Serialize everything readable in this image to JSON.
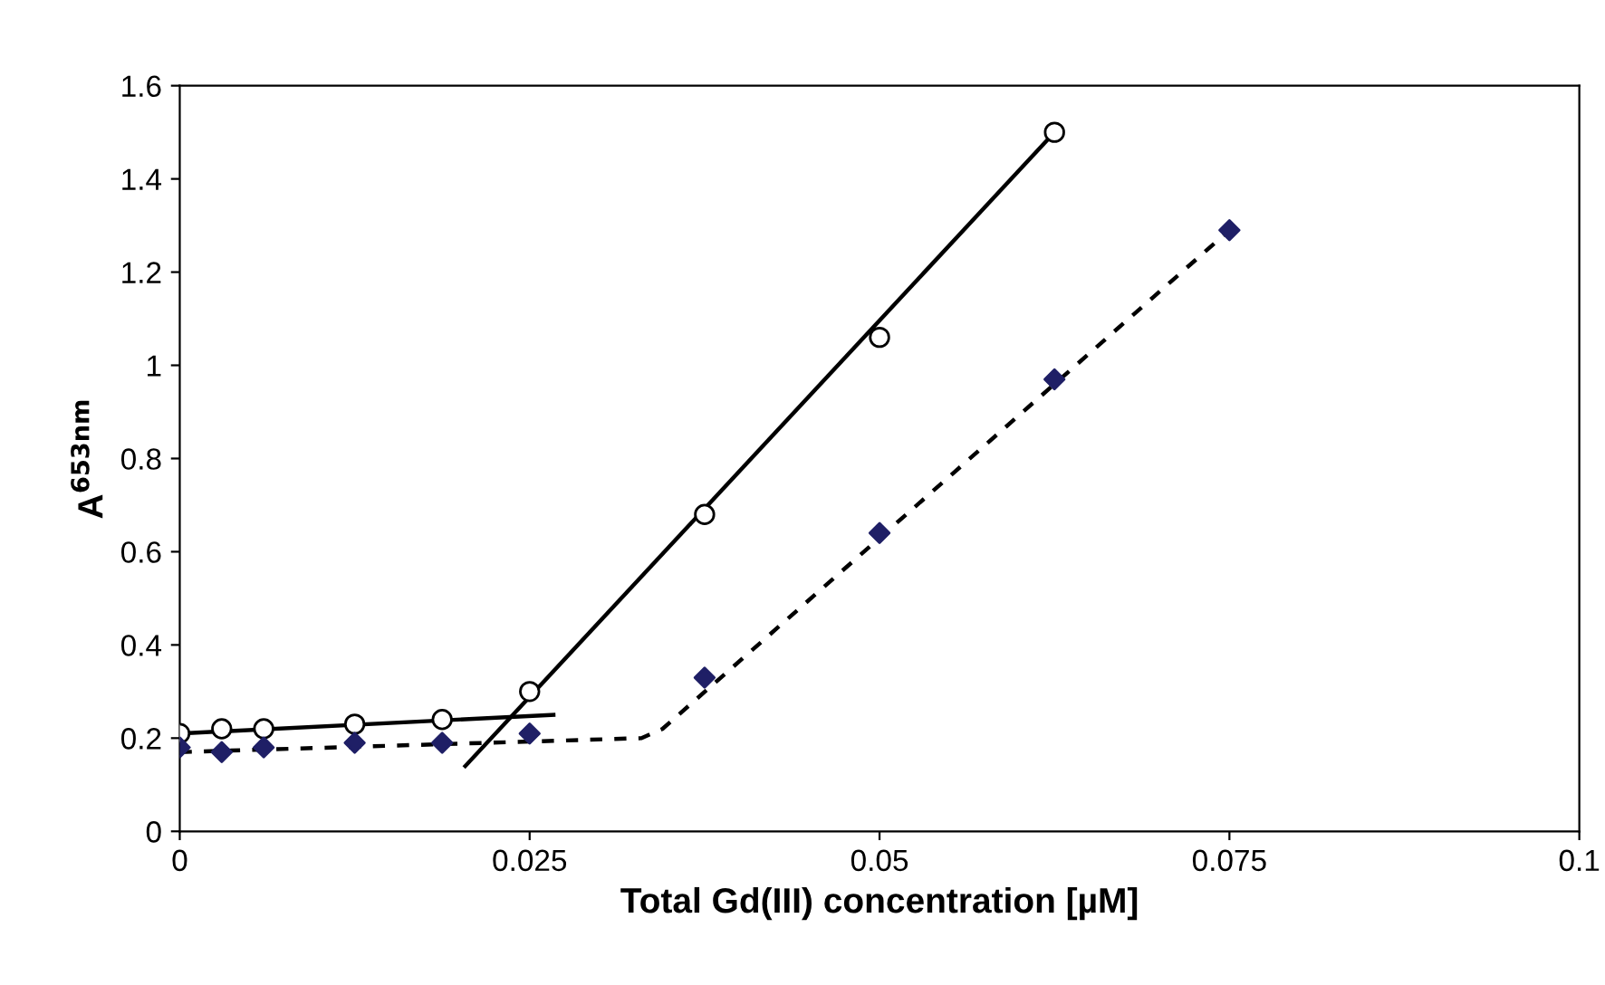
{
  "chart_data": {
    "type": "scatter",
    "xlabel": "Total Gd(III) concentration [µM]",
    "ylabel": "A$^{653nm}$",
    "xlim": [
      0,
      0.1
    ],
    "xticks": [
      0,
      0.025,
      0.05,
      0.075,
      0.1
    ],
    "ylim": [
      0,
      1.6
    ],
    "yticks": [
      0,
      0.2,
      0.4,
      0.6,
      0.8,
      1,
      1.2,
      1.4,
      1.6
    ],
    "grid": false,
    "legend": false,
    "series": [
      {
        "type": "line",
        "color": "#000000",
        "line_style": "solid",
        "marker": "none",
        "x": [
          0,
          0.0267
        ],
        "values": [
          0.21,
          0.25
        ]
      },
      {
        "type": "line",
        "color": "#000000",
        "line_style": "solid",
        "marker": "none",
        "x": [
          0.0204,
          0.0625
        ],
        "values": [
          0.14,
          1.5
        ]
      },
      {
        "type": "line",
        "color": "#000000",
        "line_style": "dashed",
        "marker": "none",
        "x": [
          0,
          0.033,
          0.0345,
          0.075
        ],
        "values": [
          0.17,
          0.2,
          0.22,
          1.29
        ]
      },
      {
        "color": "#000000",
        "marker": "circle",
        "x": [
          0,
          0.003,
          0.006,
          0.0125,
          0.01875,
          0.025,
          0.0375,
          0.05,
          0.0625
        ],
        "values": [
          0.21,
          0.22,
          0.22,
          0.23,
          0.24,
          0.3,
          0.68,
          1.06,
          1.5
        ]
      },
      {
        "color": "#1f1f66",
        "marker": "diamond",
        "x": [
          0,
          0.003,
          0.006,
          0.0125,
          0.01875,
          0.025,
          0.0375,
          0.05,
          0.0625,
          0.075
        ],
        "values": [
          0.18,
          0.17,
          0.18,
          0.19,
          0.19,
          0.21,
          0.33,
          0.64,
          0.97,
          1.29
        ]
      }
    ]
  }
}
